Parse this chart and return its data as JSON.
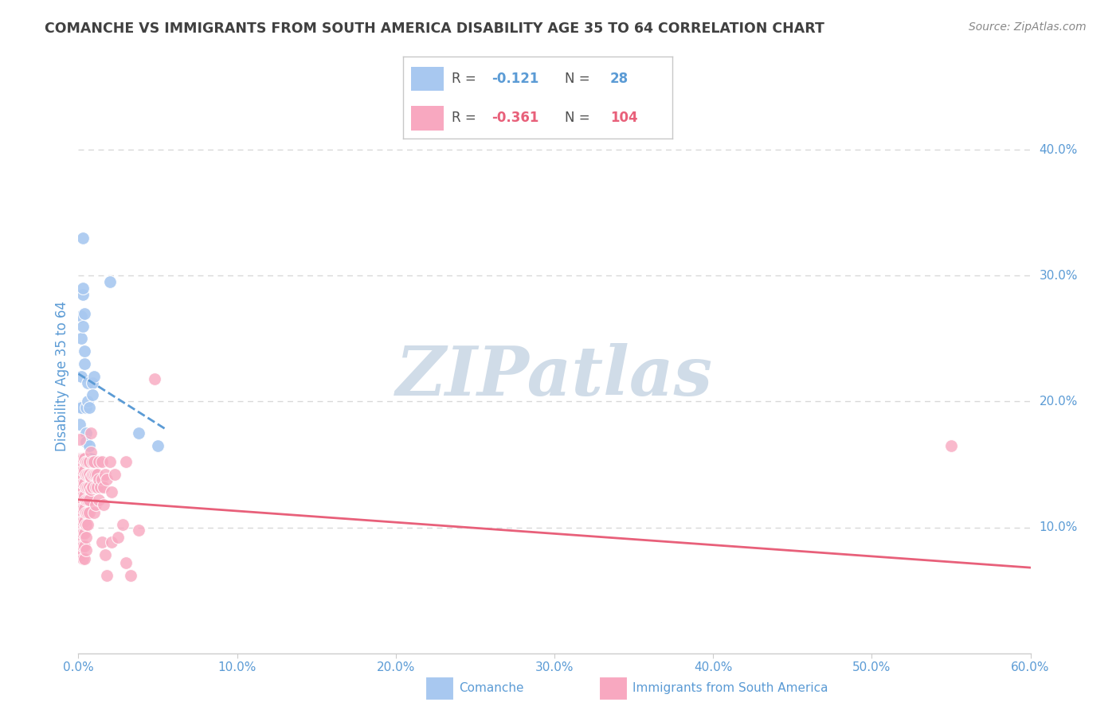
{
  "title": "COMANCHE VS IMMIGRANTS FROM SOUTH AMERICA DISABILITY AGE 35 TO 64 CORRELATION CHART",
  "source": "Source: ZipAtlas.com",
  "ylabel": "Disability Age 35 to 64",
  "xlim": [
    0.0,
    0.6
  ],
  "ylim": [
    0.0,
    0.44
  ],
  "comanche_color": "#a8c8f0",
  "immigrants_color": "#f8a8c0",
  "comanche_line_color": "#5b9bd5",
  "immigrants_line_color": "#e8607a",
  "background_color": "#ffffff",
  "grid_color": "#d8d8d8",
  "watermark": "ZIPatlas",
  "watermark_color": "#d0dce8",
  "title_color": "#404040",
  "axis_color": "#5b9bd5",
  "source_color": "#888888",
  "comanche_trendline": [
    [
      0.0,
      0.222
    ],
    [
      0.055,
      0.178
    ]
  ],
  "immigrants_trendline": [
    [
      0.0,
      0.122
    ],
    [
      0.6,
      0.068
    ]
  ],
  "comanche_data": [
    [
      0.001,
      0.195
    ],
    [
      0.001,
      0.182
    ],
    [
      0.002,
      0.268
    ],
    [
      0.002,
      0.25
    ],
    [
      0.002,
      0.22
    ],
    [
      0.002,
      0.195
    ],
    [
      0.003,
      0.33
    ],
    [
      0.003,
      0.285
    ],
    [
      0.003,
      0.29
    ],
    [
      0.003,
      0.26
    ],
    [
      0.004,
      0.27
    ],
    [
      0.004,
      0.24
    ],
    [
      0.004,
      0.23
    ],
    [
      0.005,
      0.195
    ],
    [
      0.005,
      0.175
    ],
    [
      0.005,
      0.168
    ],
    [
      0.006,
      0.215
    ],
    [
      0.006,
      0.2
    ],
    [
      0.006,
      0.155
    ],
    [
      0.007,
      0.195
    ],
    [
      0.007,
      0.165
    ],
    [
      0.008,
      0.155
    ],
    [
      0.009,
      0.215
    ],
    [
      0.009,
      0.205
    ],
    [
      0.01,
      0.22
    ],
    [
      0.02,
      0.295
    ],
    [
      0.038,
      0.175
    ],
    [
      0.05,
      0.165
    ]
  ],
  "immigrants_data": [
    [
      0.001,
      0.155
    ],
    [
      0.001,
      0.148
    ],
    [
      0.001,
      0.14
    ],
    [
      0.001,
      0.135
    ],
    [
      0.001,
      0.128
    ],
    [
      0.001,
      0.122
    ],
    [
      0.001,
      0.115
    ],
    [
      0.001,
      0.11
    ],
    [
      0.001,
      0.105
    ],
    [
      0.001,
      0.1
    ],
    [
      0.001,
      0.095
    ],
    [
      0.001,
      0.09
    ],
    [
      0.001,
      0.085
    ],
    [
      0.001,
      0.078
    ],
    [
      0.001,
      0.17
    ],
    [
      0.002,
      0.155
    ],
    [
      0.002,
      0.148
    ],
    [
      0.002,
      0.14
    ],
    [
      0.002,
      0.133
    ],
    [
      0.002,
      0.128
    ],
    [
      0.002,
      0.122
    ],
    [
      0.002,
      0.115
    ],
    [
      0.002,
      0.11
    ],
    [
      0.002,
      0.105
    ],
    [
      0.002,
      0.1
    ],
    [
      0.002,
      0.095
    ],
    [
      0.002,
      0.09
    ],
    [
      0.002,
      0.085
    ],
    [
      0.002,
      0.078
    ],
    [
      0.003,
      0.155
    ],
    [
      0.003,
      0.145
    ],
    [
      0.003,
      0.135
    ],
    [
      0.003,
      0.125
    ],
    [
      0.003,
      0.115
    ],
    [
      0.003,
      0.105
    ],
    [
      0.003,
      0.095
    ],
    [
      0.003,
      0.085
    ],
    [
      0.003,
      0.075
    ],
    [
      0.004,
      0.155
    ],
    [
      0.004,
      0.145
    ],
    [
      0.004,
      0.135
    ],
    [
      0.004,
      0.125
    ],
    [
      0.004,
      0.115
    ],
    [
      0.004,
      0.105
    ],
    [
      0.004,
      0.095
    ],
    [
      0.004,
      0.085
    ],
    [
      0.004,
      0.075
    ],
    [
      0.005,
      0.152
    ],
    [
      0.005,
      0.142
    ],
    [
      0.005,
      0.132
    ],
    [
      0.005,
      0.122
    ],
    [
      0.005,
      0.112
    ],
    [
      0.005,
      0.102
    ],
    [
      0.005,
      0.092
    ],
    [
      0.005,
      0.082
    ],
    [
      0.006,
      0.152
    ],
    [
      0.006,
      0.142
    ],
    [
      0.006,
      0.132
    ],
    [
      0.006,
      0.122
    ],
    [
      0.006,
      0.112
    ],
    [
      0.006,
      0.102
    ],
    [
      0.007,
      0.152
    ],
    [
      0.007,
      0.142
    ],
    [
      0.007,
      0.132
    ],
    [
      0.007,
      0.122
    ],
    [
      0.007,
      0.112
    ],
    [
      0.008,
      0.175
    ],
    [
      0.008,
      0.16
    ],
    [
      0.008,
      0.14
    ],
    [
      0.008,
      0.13
    ],
    [
      0.009,
      0.152
    ],
    [
      0.009,
      0.142
    ],
    [
      0.009,
      0.132
    ],
    [
      0.01,
      0.152
    ],
    [
      0.01,
      0.142
    ],
    [
      0.01,
      0.112
    ],
    [
      0.011,
      0.142
    ],
    [
      0.011,
      0.132
    ],
    [
      0.011,
      0.118
    ],
    [
      0.012,
      0.142
    ],
    [
      0.012,
      0.132
    ],
    [
      0.013,
      0.152
    ],
    [
      0.013,
      0.138
    ],
    [
      0.013,
      0.122
    ],
    [
      0.014,
      0.132
    ],
    [
      0.015,
      0.152
    ],
    [
      0.015,
      0.138
    ],
    [
      0.015,
      0.088
    ],
    [
      0.016,
      0.132
    ],
    [
      0.016,
      0.118
    ],
    [
      0.017,
      0.142
    ],
    [
      0.017,
      0.078
    ],
    [
      0.018,
      0.138
    ],
    [
      0.018,
      0.062
    ],
    [
      0.02,
      0.152
    ],
    [
      0.021,
      0.128
    ],
    [
      0.021,
      0.088
    ],
    [
      0.023,
      0.142
    ],
    [
      0.025,
      0.092
    ],
    [
      0.028,
      0.102
    ],
    [
      0.03,
      0.152
    ],
    [
      0.03,
      0.072
    ],
    [
      0.033,
      0.062
    ],
    [
      0.038,
      0.098
    ],
    [
      0.048,
      0.218
    ],
    [
      0.55,
      0.165
    ]
  ]
}
